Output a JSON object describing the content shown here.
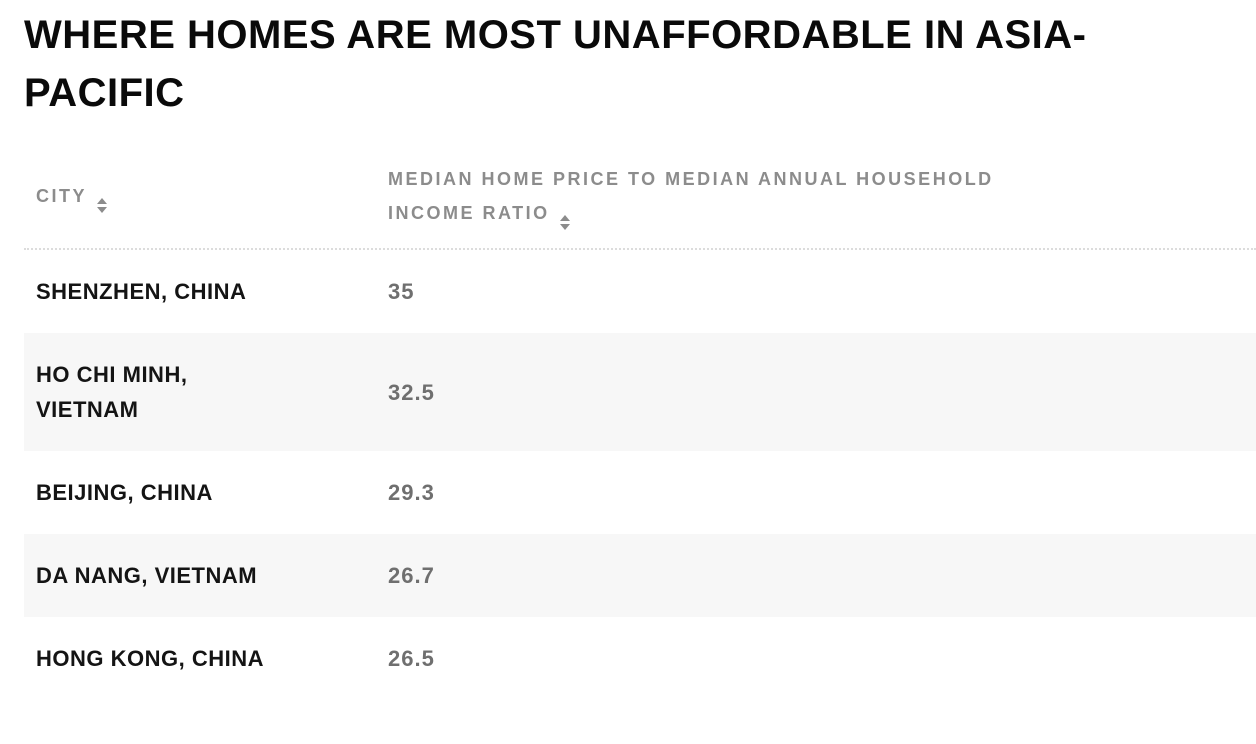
{
  "title": "WHERE HOMES ARE MOST UNAFFORDABLE IN ASIA-\nPACIFIC",
  "table": {
    "columns": [
      {
        "label": "CITY",
        "sort_icon": "sort-arrows"
      },
      {
        "label": "MEDIAN HOME PRICE TO MEDIAN ANNUAL HOUSEHOLD\nINCOME RATIO",
        "sort_icon": "sort-arrows"
      }
    ],
    "rows": [
      {
        "city": "SHENZHEN, CHINA",
        "ratio": "35"
      },
      {
        "city": "HO CHI MINH,\nVIETNAM",
        "ratio": "32.5"
      },
      {
        "city": "BEIJING, CHINA",
        "ratio": "29.3"
      },
      {
        "city": "DA NANG, VIETNAM",
        "ratio": "26.7"
      },
      {
        "city": "HONG KONG, CHINA",
        "ratio": "26.5"
      }
    ]
  },
  "chart_data": {
    "type": "table",
    "title": "WHERE HOMES ARE MOST UNAFFORDABLE IN ASIA-PACIFIC",
    "columns": [
      "CITY",
      "MEDIAN HOME PRICE TO MEDIAN ANNUAL HOUSEHOLD INCOME RATIO"
    ],
    "rows": [
      [
        "SHENZHEN, CHINA",
        35
      ],
      [
        "HO CHI MINH, VIETNAM",
        32.5
      ],
      [
        "BEIJING, CHINA",
        29.3
      ],
      [
        "DA NANG, VIETNAM",
        26.7
      ],
      [
        "HONG KONG, CHINA",
        26.5
      ]
    ],
    "sortable_columns": true
  },
  "colors": {
    "title_text": "#0a0a0a",
    "city_text": "#141414",
    "value_text": "#6f6f6f",
    "header_text": "#8c8c8c",
    "row_alt": "#f7f7f7",
    "border": "#dcdcdc"
  }
}
